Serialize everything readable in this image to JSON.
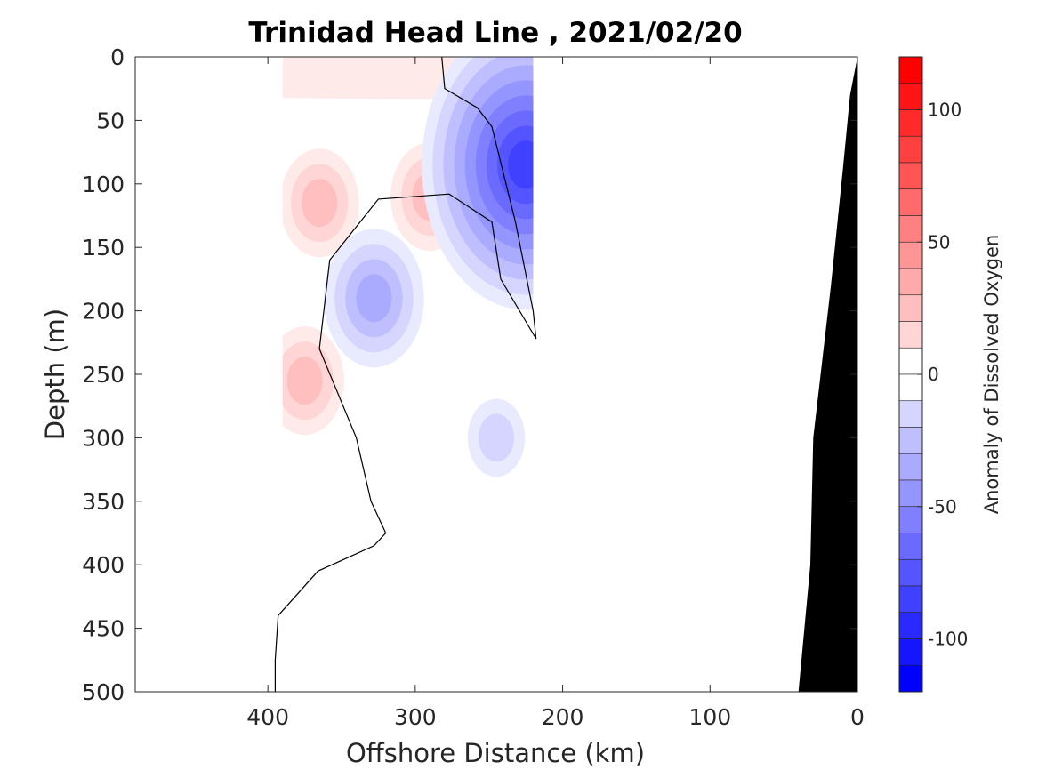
{
  "chart_data": {
    "type": "contour",
    "title": "Trinidad Head Line , 2021/02/20",
    "xlabel": "Offshore Distance (km)",
    "ylabel": "Depth (m)",
    "xlim": [
      490,
      0
    ],
    "ylim": [
      0,
      500
    ],
    "x_reversed": true,
    "y_reversed": true,
    "xticks": [
      400,
      300,
      200,
      100,
      0
    ],
    "yticks": [
      0,
      50,
      100,
      150,
      200,
      250,
      300,
      350,
      400,
      450,
      500
    ],
    "colorbar": {
      "label": "Anomaly of Dissolved Oxygen",
      "range": [
        -120,
        120
      ],
      "step": 10,
      "ticks": [
        100,
        50,
        0,
        -50,
        -100
      ]
    },
    "data_extent_km": [
      390,
      220
    ],
    "features": [
      {
        "kind": "positive",
        "level": 10,
        "x": 390,
        "y": 15,
        "note": "shallow positive anomaly band 0–50 m"
      },
      {
        "kind": "positive",
        "level": 30,
        "x": 365,
        "y": 115
      },
      {
        "kind": "positive",
        "level": 30,
        "x": 290,
        "y": 110
      },
      {
        "kind": "positive",
        "level": 30,
        "x": 375,
        "y": 255
      },
      {
        "kind": "negative",
        "level": -40,
        "x": 328,
        "y": 190
      },
      {
        "kind": "negative",
        "level": -90,
        "x": 225,
        "y": 85
      },
      {
        "kind": "negative",
        "level": -20,
        "x": 245,
        "y": 300
      }
    ],
    "zero_contour": [
      [
        282,
        0
      ],
      [
        280,
        25
      ],
      [
        258,
        40
      ],
      [
        248,
        55
      ],
      [
        232,
        130
      ],
      [
        220,
        200
      ],
      [
        218,
        222
      ],
      [
        242,
        175
      ],
      [
        248,
        130
      ],
      [
        277,
        108
      ],
      [
        325,
        112
      ],
      [
        358,
        160
      ],
      [
        365,
        230
      ],
      [
        340,
        300
      ],
      [
        330,
        350
      ],
      [
        320,
        375
      ],
      [
        328,
        385
      ],
      [
        366,
        405
      ],
      [
        393,
        440
      ],
      [
        395,
        475
      ],
      [
        395,
        500
      ]
    ],
    "bathymetry_km_depth": [
      [
        0,
        0
      ],
      [
        5,
        30
      ],
      [
        10,
        90
      ],
      [
        18,
        180
      ],
      [
        30,
        300
      ],
      [
        32,
        400
      ],
      [
        40,
        500
      ]
    ]
  }
}
